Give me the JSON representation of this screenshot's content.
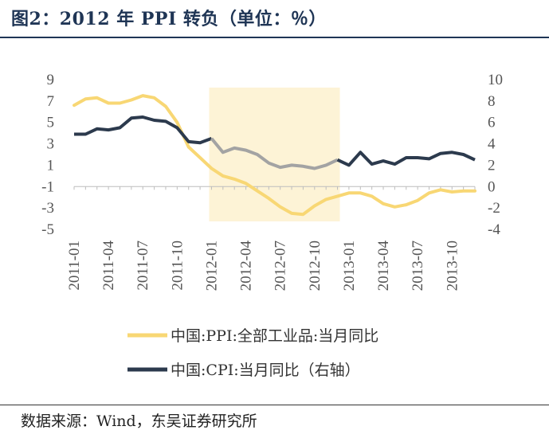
{
  "title": "图2：2012 年 PPI 转负（单位：％）",
  "source": "数据来源：Wind，东吴证券研究所",
  "colors": {
    "ppi": "#f8d774",
    "cpi": "#2c3a4d",
    "cpi_highlight": "#a3a3a3",
    "shade": "#fdf3d6",
    "title": "#1f3555"
  },
  "chart_data": {
    "type": "line",
    "title": "",
    "x": [
      "2011-01",
      "2011-02",
      "2011-03",
      "2011-04",
      "2011-05",
      "2011-06",
      "2011-07",
      "2011-08",
      "2011-09",
      "2011-10",
      "2011-11",
      "2011-12",
      "2012-01",
      "2012-02",
      "2012-03",
      "2012-04",
      "2012-05",
      "2012-06",
      "2012-07",
      "2012-08",
      "2012-09",
      "2012-10",
      "2012-11",
      "2012-12",
      "2013-01",
      "2013-02",
      "2013-03",
      "2013-04",
      "2013-05",
      "2013-06",
      "2013-07",
      "2013-08",
      "2013-09",
      "2013-10",
      "2013-11",
      "2013-12"
    ],
    "x_tick_labels": [
      "2011-01",
      "2011-04",
      "2011-07",
      "2011-10",
      "2012-01",
      "2012-04",
      "2012-07",
      "2012-10",
      "2013-01",
      "2013-04",
      "2013-07",
      "2013-10"
    ],
    "shaded_range": [
      "2012-01",
      "2012-12"
    ],
    "left_axis": {
      "ylim": [
        -5,
        9
      ],
      "ticks": [
        9,
        7,
        5,
        3,
        1,
        -1,
        -3,
        -5
      ]
    },
    "right_axis": {
      "ylim": [
        -4,
        10
      ],
      "ticks": [
        10,
        8,
        6,
        4,
        2,
        0,
        -2,
        -4
      ]
    },
    "series": [
      {
        "name": "中国:PPI:全部工业品:当月同比",
        "axis": "left",
        "values": [
          6.6,
          7.2,
          7.3,
          6.8,
          6.8,
          7.1,
          7.5,
          7.3,
          6.5,
          5.0,
          2.7,
          1.7,
          0.7,
          0.0,
          -0.3,
          -0.7,
          -1.4,
          -2.1,
          -2.9,
          -3.5,
          -3.6,
          -2.8,
          -2.2,
          -1.9,
          -1.6,
          -1.6,
          -1.9,
          -2.6,
          -2.9,
          -2.7,
          -2.3,
          -1.6,
          -1.3,
          -1.5,
          -1.4,
          -1.4
        ]
      },
      {
        "name": "中国:CPI:当月同比（右轴）",
        "axis": "right",
        "values": [
          4.9,
          4.9,
          5.4,
          5.3,
          5.5,
          6.4,
          6.5,
          6.2,
          6.1,
          5.5,
          4.2,
          4.1,
          4.5,
          3.2,
          3.6,
          3.4,
          3.0,
          2.2,
          1.8,
          2.0,
          1.9,
          1.7,
          2.0,
          2.5,
          2.0,
          3.2,
          2.1,
          2.4,
          2.1,
          2.7,
          2.7,
          2.6,
          3.1,
          3.2,
          3.0,
          2.5
        ]
      }
    ]
  },
  "legend": {
    "ppi": "中国:PPI:全部工业品:当月同比",
    "cpi": "中国:CPI:当月同比（右轴）"
  }
}
